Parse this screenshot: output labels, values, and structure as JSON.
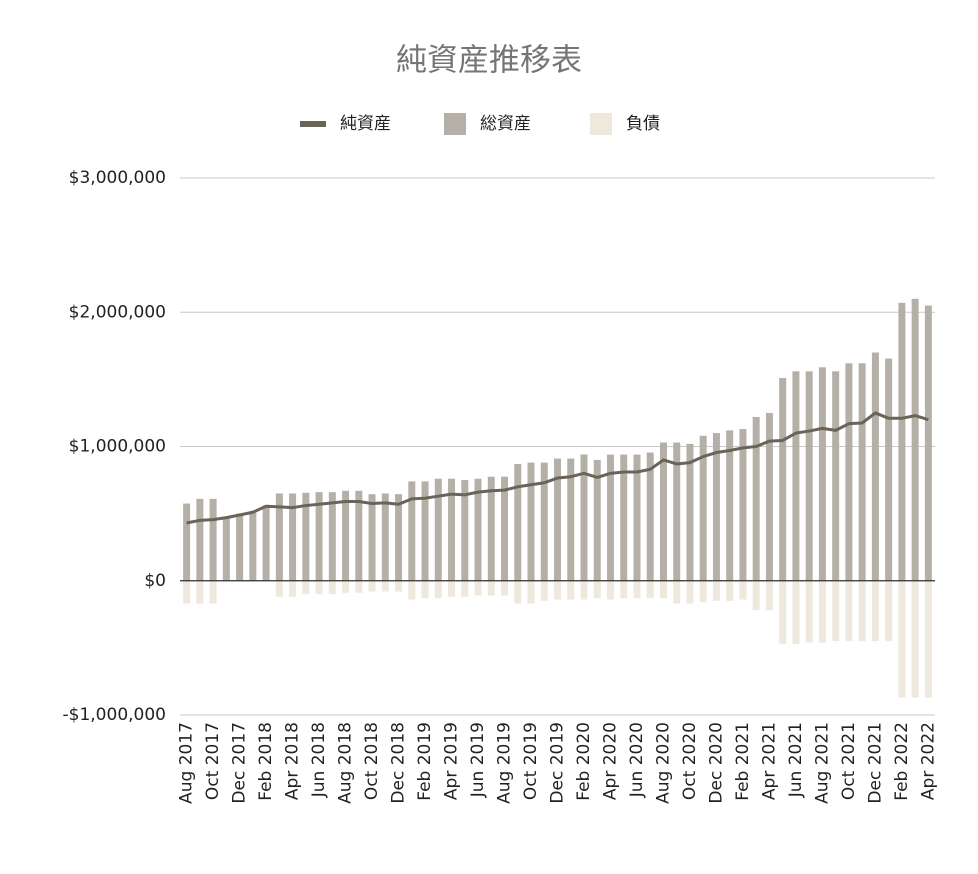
{
  "chart_data": {
    "type": "bar_line",
    "title": "純資産推移表",
    "categories": [
      "Aug 2017",
      null,
      "Oct 2017",
      null,
      "Dec 2017",
      null,
      "Feb 2018",
      null,
      "Apr 2018",
      null,
      "Jun 2018",
      null,
      "Aug 2018",
      null,
      "Oct 2018",
      null,
      "Dec 2018",
      null,
      "Feb 2019",
      null,
      "Apr 2019",
      null,
      "Jun 2019",
      null,
      "Aug 2019",
      null,
      "Oct 2019",
      null,
      "Dec 2019",
      null,
      "Feb 2020",
      null,
      "Apr 2020",
      null,
      "Jun 2020",
      null,
      "Aug 2020",
      null,
      "Oct 2020",
      null,
      "Dec 2020",
      null,
      "Feb 2021",
      null,
      "Apr 2021",
      null,
      "Jun 2021",
      null,
      "Aug 2021",
      null,
      "Oct 2021",
      null,
      "Dec 2021",
      null,
      "Feb 2022",
      null,
      "Apr 2022"
    ],
    "series": [
      {
        "name": "純資産",
        "kind": "line",
        "color": "#6b6258",
        "values": [
          430000,
          450000,
          455000,
          470000,
          490000,
          510000,
          555000,
          550000,
          545000,
          560000,
          570000,
          580000,
          590000,
          590000,
          575000,
          580000,
          570000,
          610000,
          615000,
          630000,
          645000,
          640000,
          660000,
          670000,
          675000,
          700000,
          715000,
          730000,
          765000,
          775000,
          800000,
          770000,
          800000,
          810000,
          810000,
          830000,
          900000,
          870000,
          880000,
          925000,
          955000,
          970000,
          990000,
          1000000,
          1040000,
          1045000,
          1100000,
          1115000,
          1135000,
          1120000,
          1170000,
          1175000,
          1250000,
          1210000,
          1210000,
          1230000,
          1200000
        ]
      },
      {
        "name": "総資産",
        "kind": "bar",
        "color": "#b5b0a7",
        "values": [
          575000,
          610000,
          610000,
          470000,
          500000,
          520000,
          560000,
          650000,
          650000,
          655000,
          660000,
          660000,
          670000,
          670000,
          645000,
          650000,
          645000,
          740000,
          740000,
          760000,
          760000,
          750000,
          760000,
          775000,
          775000,
          870000,
          880000,
          880000,
          910000,
          910000,
          940000,
          900000,
          940000,
          940000,
          940000,
          955000,
          1030000,
          1030000,
          1020000,
          1080000,
          1100000,
          1120000,
          1130000,
          1220000,
          1250000,
          1510000,
          1560000,
          1560000,
          1590000,
          1560000,
          1620000,
          1620000,
          1700000,
          1655000,
          2070000,
          2100000,
          2050000
        ]
      },
      {
        "name": "負債",
        "kind": "bar",
        "color": "#efe8dc",
        "values": [
          -170000,
          -170000,
          -170000,
          0,
          0,
          0,
          0,
          -120000,
          -120000,
          -100000,
          -100000,
          -100000,
          -90000,
          -90000,
          -80000,
          -80000,
          -80000,
          -140000,
          -130000,
          -130000,
          -120000,
          -120000,
          -110000,
          -110000,
          -110000,
          -170000,
          -170000,
          -150000,
          -140000,
          -140000,
          -140000,
          -130000,
          -140000,
          -130000,
          -130000,
          -130000,
          -130000,
          -170000,
          -170000,
          -160000,
          -150000,
          -150000,
          -140000,
          -220000,
          -220000,
          -470000,
          -470000,
          -460000,
          -460000,
          -450000,
          -450000,
          -450000,
          -450000,
          -450000,
          -870000,
          -870000,
          -870000
        ]
      }
    ],
    "ylim": [
      -1000000,
      3000000
    ],
    "yticks": [
      {
        "value": -1000000,
        "label": "-$1,000,000"
      },
      {
        "value": 0,
        "label": "$0"
      },
      {
        "value": 1000000,
        "label": "$1,000,000"
      },
      {
        "value": 2000000,
        "label": "$2,000,000"
      },
      {
        "value": 3000000,
        "label": "$3,000,000"
      }
    ],
    "grid": true,
    "legend": "top"
  }
}
